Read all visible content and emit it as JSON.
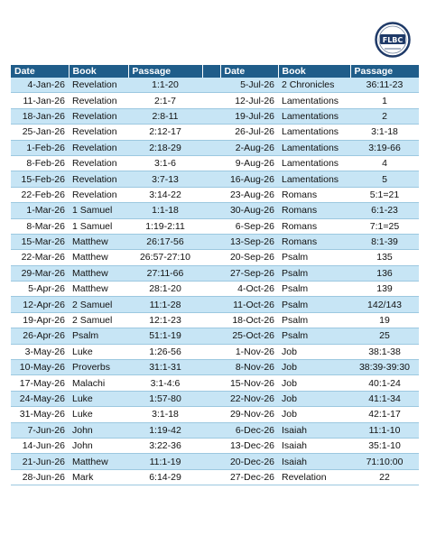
{
  "logo": {
    "text": "FLBC"
  },
  "headers": {
    "date": "Date",
    "book": "Book",
    "passage": "Passage"
  },
  "rows": [
    {
      "left": {
        "date": "4-Jan-26",
        "book": "Revelation",
        "passage": "1:1-20"
      },
      "right": {
        "date": "5-Jul-26",
        "book": "2 Chronicles",
        "passage": "36:11-23"
      }
    },
    {
      "left": {
        "date": "11-Jan-26",
        "book": "Revelation",
        "passage": "2:1-7"
      },
      "right": {
        "date": "12-Jul-26",
        "book": "Lamentations",
        "passage": "1"
      }
    },
    {
      "left": {
        "date": "18-Jan-26",
        "book": "Revelation",
        "passage": "2:8-11"
      },
      "right": {
        "date": "19-Jul-26",
        "book": "Lamentations",
        "passage": "2"
      }
    },
    {
      "left": {
        "date": "25-Jan-26",
        "book": "Revelation",
        "passage": "2:12-17"
      },
      "right": {
        "date": "26-Jul-26",
        "book": "Lamentations",
        "passage": "3:1-18"
      }
    },
    {
      "left": {
        "date": "1-Feb-26",
        "book": "Revelation",
        "passage": "2:18-29"
      },
      "right": {
        "date": "2-Aug-26",
        "book": "Lamentations",
        "passage": "3:19-66"
      }
    },
    {
      "left": {
        "date": "8-Feb-26",
        "book": "Revelation",
        "passage": "3:1-6"
      },
      "right": {
        "date": "9-Aug-26",
        "book": "Lamentations",
        "passage": "4"
      }
    },
    {
      "left": {
        "date": "15-Feb-26",
        "book": "Revelation",
        "passage": "3:7-13"
      },
      "right": {
        "date": "16-Aug-26",
        "book": "Lamentations",
        "passage": "5"
      }
    },
    {
      "left": {
        "date": "22-Feb-26",
        "book": "Revelation",
        "passage": "3:14-22"
      },
      "right": {
        "date": "23-Aug-26",
        "book": "Romans",
        "passage": "5:1=21"
      }
    },
    {
      "left": {
        "date": "1-Mar-26",
        "book": "1 Samuel",
        "passage": "1:1-18"
      },
      "right": {
        "date": "30-Aug-26",
        "book": "Romans",
        "passage": "6:1-23"
      }
    },
    {
      "left": {
        "date": "8-Mar-26",
        "book": "1 Samuel",
        "passage": "1:19-2:11"
      },
      "right": {
        "date": "6-Sep-26",
        "book": "Romans",
        "passage": "7:1=25"
      }
    },
    {
      "left": {
        "date": "15-Mar-26",
        "book": "Matthew",
        "passage": "26:17-56"
      },
      "right": {
        "date": "13-Sep-26",
        "book": "Romans",
        "passage": "8:1-39"
      }
    },
    {
      "left": {
        "date": "22-Mar-26",
        "book": "Matthew",
        "passage": "26:57-27:10"
      },
      "right": {
        "date": "20-Sep-26",
        "book": "Psalm",
        "passage": "135"
      }
    },
    {
      "left": {
        "date": "29-Mar-26",
        "book": "Matthew",
        "passage": "27:11-66"
      },
      "right": {
        "date": "27-Sep-26",
        "book": "Psalm",
        "passage": "136"
      }
    },
    {
      "left": {
        "date": "5-Apr-26",
        "book": "Matthew",
        "passage": "28:1-20"
      },
      "right": {
        "date": "4-Oct-26",
        "book": "Psalm",
        "passage": "139"
      }
    },
    {
      "left": {
        "date": "12-Apr-26",
        "book": "2 Samuel",
        "passage": "11:1-28"
      },
      "right": {
        "date": "11-Oct-26",
        "book": "Psalm",
        "passage": "142/143"
      }
    },
    {
      "left": {
        "date": "19-Apr-26",
        "book": "2 Samuel",
        "passage": "12:1-23"
      },
      "right": {
        "date": "18-Oct-26",
        "book": "Psalm",
        "passage": "19"
      }
    },
    {
      "left": {
        "date": "26-Apr-26",
        "book": "Psalm",
        "passage": "51:1-19"
      },
      "right": {
        "date": "25-Oct-26",
        "book": "Psalm",
        "passage": "25"
      }
    },
    {
      "left": {
        "date": "3-May-26",
        "book": "Luke",
        "passage": "1:26-56"
      },
      "right": {
        "date": "1-Nov-26",
        "book": "Job",
        "passage": "38:1-38"
      }
    },
    {
      "left": {
        "date": "10-May-26",
        "book": "Proverbs",
        "passage": "31:1-31"
      },
      "right": {
        "date": "8-Nov-26",
        "book": "Job",
        "passage": "38:39-39:30"
      }
    },
    {
      "left": {
        "date": "17-May-26",
        "book": "Malachi",
        "passage": "3:1-4:6"
      },
      "right": {
        "date": "15-Nov-26",
        "book": "Job",
        "passage": "40:1-24"
      }
    },
    {
      "left": {
        "date": "24-May-26",
        "book": "Luke",
        "passage": "1:57-80"
      },
      "right": {
        "date": "22-Nov-26",
        "book": "Job",
        "passage": "41:1-34"
      }
    },
    {
      "left": {
        "date": "31-May-26",
        "book": "Luke",
        "passage": "3:1-18"
      },
      "right": {
        "date": "29-Nov-26",
        "book": "Job",
        "passage": "42:1-17"
      }
    },
    {
      "left": {
        "date": "7-Jun-26",
        "book": "John",
        "passage": "1:19-42"
      },
      "right": {
        "date": "6-Dec-26",
        "book": "Isaiah",
        "passage": "11:1-10"
      }
    },
    {
      "left": {
        "date": "14-Jun-26",
        "book": "John",
        "passage": "3:22-36"
      },
      "right": {
        "date": "13-Dec-26",
        "book": "Isaiah",
        "passage": "35:1-10"
      }
    },
    {
      "left": {
        "date": "21-Jun-26",
        "book": "Matthew",
        "passage": "11:1-19"
      },
      "right": {
        "date": "20-Dec-26",
        "book": "Isaiah",
        "passage": "71:10:00"
      }
    },
    {
      "left": {
        "date": "28-Jun-26",
        "book": "Mark",
        "passage": "6:14-29"
      },
      "right": {
        "date": "27-Dec-26",
        "book": "Revelation",
        "passage": "22"
      }
    }
  ],
  "colors": {
    "header_bg": "#1f5d8a",
    "band": "#c7e5f5",
    "logo_ring": "#1f3a68"
  }
}
